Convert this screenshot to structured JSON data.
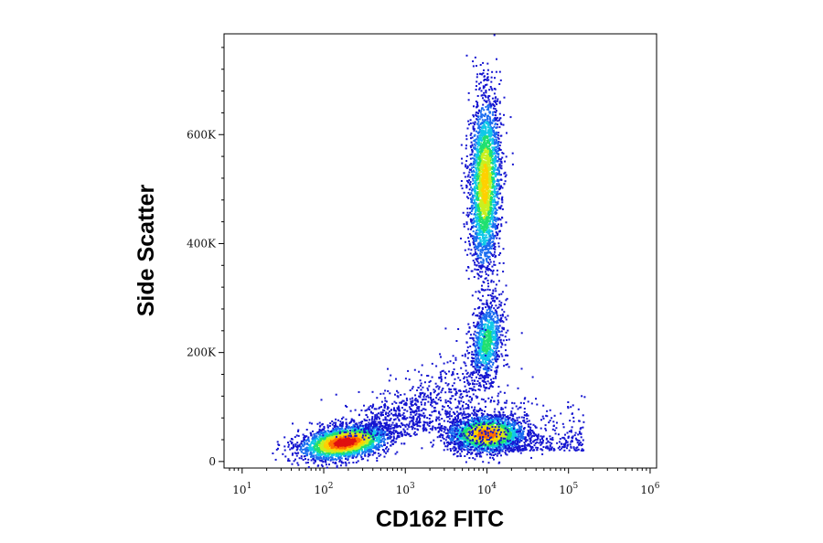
{
  "chart_data": {
    "type": "scatter",
    "subtype": "flow-cytometry-density-dot-plot",
    "xlabel": "CD162 FITC",
    "ylabel": "Side Scatter",
    "x_scale": "log",
    "xlim": [
      6,
      1200000
    ],
    "ylim": [
      -12000,
      785000
    ],
    "x_ticks": [
      {
        "base": "10",
        "exp": "1",
        "value": 10
      },
      {
        "base": "10",
        "exp": "2",
        "value": 100
      },
      {
        "base": "10",
        "exp": "3",
        "value": 1000
      },
      {
        "base": "10",
        "exp": "4",
        "value": 10000
      },
      {
        "base": "10",
        "exp": "5",
        "value": 100000
      },
      {
        "base": "10",
        "exp": "6",
        "value": 1000000
      }
    ],
    "y_ticks": [
      {
        "label": "0",
        "value": 0
      },
      {
        "label": "200K",
        "value": 200000
      },
      {
        "label": "400K",
        "value": 400000
      },
      {
        "label": "600K",
        "value": 600000
      }
    ],
    "grid": false,
    "legend": "none",
    "colormap": [
      "#1515d0",
      "#1a6cf0",
      "#10c8e8",
      "#20e070",
      "#c8f020",
      "#ffd000",
      "#ff7000",
      "#e01010"
    ],
    "populations": [
      {
        "x_center": 180,
        "y_center": 35000,
        "relative_density": 1.0
      },
      {
        "x_center": 10000,
        "y_center": 50000,
        "relative_density": 0.85
      },
      {
        "x_center": 10000,
        "y_center": 220000,
        "relative_density": 0.45
      },
      {
        "x_center": 9500,
        "y_center": 510000,
        "relative_density": 0.7
      }
    ]
  }
}
